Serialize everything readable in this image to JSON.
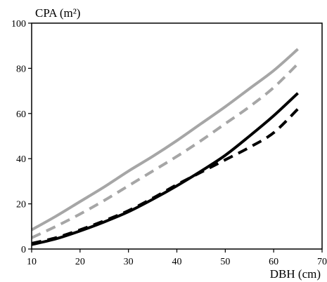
{
  "chart_data": {
    "type": "line",
    "title": "",
    "xlabel": "DBH (cm)",
    "ylabel": "CPA (m²)",
    "xlim": [
      10,
      70
    ],
    "ylim": [
      0,
      100
    ],
    "x_ticks": [
      10,
      20,
      30,
      40,
      50,
      60,
      70
    ],
    "y_ticks": [
      0,
      20,
      40,
      60,
      80,
      100
    ],
    "grid": false,
    "legend": "none",
    "series": [
      {
        "color": "#a6a6a6",
        "dash": "solid",
        "x": [
          10,
          15,
          20,
          25,
          30,
          35,
          40,
          45,
          50,
          55,
          60,
          65
        ],
        "values": [
          8.5,
          14.5,
          21,
          27.5,
          34.5,
          41,
          48,
          55.5,
          63,
          71,
          79,
          88.5
        ]
      },
      {
        "color": "#a6a6a6",
        "dash": "dashed",
        "x": [
          10,
          15,
          20,
          25,
          30,
          35,
          40,
          45,
          50,
          55,
          60,
          65
        ],
        "values": [
          5,
          10,
          15.5,
          21.5,
          28,
          34.5,
          41,
          48,
          55.5,
          63,
          71.5,
          82
        ]
      },
      {
        "color": "#000000",
        "dash": "solid",
        "x": [
          10,
          15,
          20,
          25,
          30,
          35,
          40,
          45,
          50,
          55,
          60,
          65
        ],
        "values": [
          2,
          4.5,
          8,
          12,
          16.5,
          22,
          28,
          34.5,
          41.5,
          50,
          59,
          69
        ]
      },
      {
        "color": "#000000",
        "dash": "dashed",
        "x": [
          10,
          15,
          20,
          25,
          30,
          35,
          40,
          45,
          50,
          55,
          60,
          65
        ],
        "values": [
          2.5,
          5,
          8.5,
          12.5,
          17,
          22.5,
          28.5,
          34,
          39.5,
          45,
          51.5,
          62
        ]
      }
    ]
  }
}
